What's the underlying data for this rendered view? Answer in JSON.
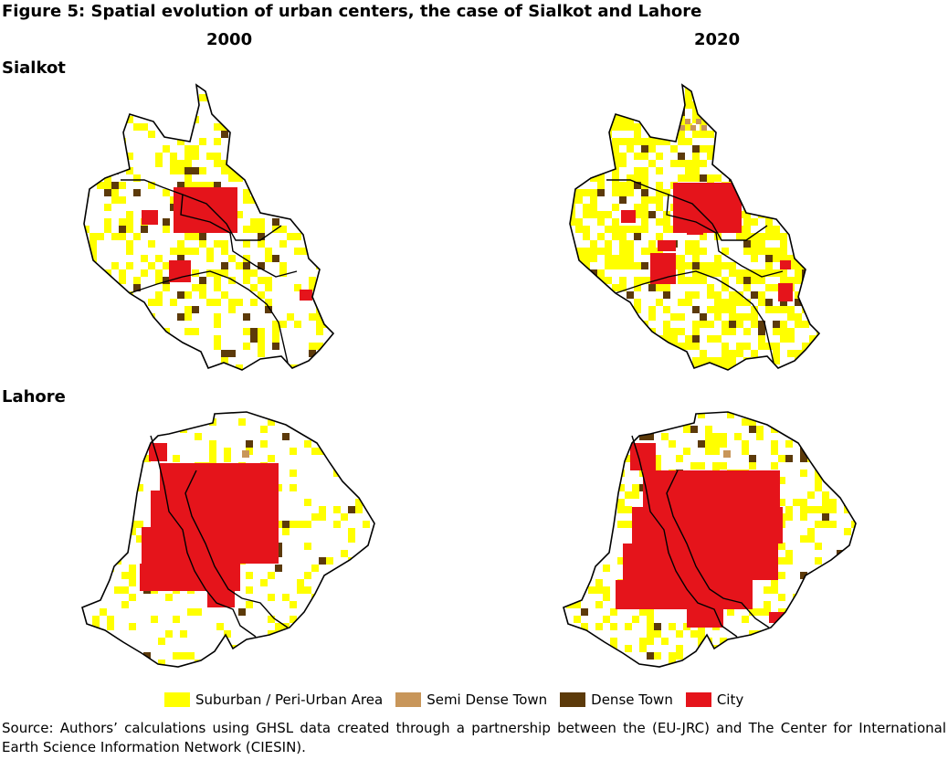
{
  "figure": {
    "title": "Figure 5: Spatial evolution of urban centers, the case of Sialkot and Lahore",
    "years": [
      "2000",
      "2020"
    ],
    "rows": [
      {
        "city": "Sialkot"
      },
      {
        "city": "Lahore"
      }
    ]
  },
  "legend": {
    "items": [
      {
        "label": "Suburban / Peri-Urban Area",
        "color": "#ffff00"
      },
      {
        "label": "Semi Dense Town",
        "color": "#c8965a"
      },
      {
        "label": "Dense Town",
        "color": "#5c3a0a"
      },
      {
        "label": "City",
        "color": "#e5141b"
      }
    ]
  },
  "colors": {
    "outline": "#000000",
    "background": "#ffffff"
  },
  "source": "Source: Authors’ calculations using GHSL data created through a partnership between the (EU-JRC) and The Center for International Earth Science Information Network (CIESIN)."
}
